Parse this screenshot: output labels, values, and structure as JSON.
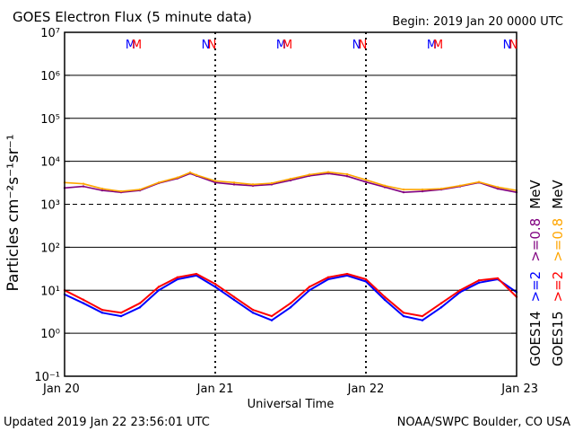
{
  "title": "GOES Electron Flux (5 minute data)",
  "begin_label": "Begin: 2019 Jan 20 0000 UTC",
  "updated_label": "Updated 2019 Jan 22 23:56:01 UTC",
  "credit_label": "NOAA/SWPC Boulder, CO USA",
  "chart_data": {
    "type": "line",
    "title": "GOES Electron Flux (5 minute data)",
    "xlabel": "Universal Time",
    "ylabel": "Particles cm⁻²s⁻¹sr⁻¹",
    "y_scale": "log",
    "ylim": [
      0.1,
      10000000
    ],
    "y_ticks": [
      {
        "value": 0.1,
        "label": "10⁻¹"
      },
      {
        "value": 1,
        "label": "10⁰"
      },
      {
        "value": 10,
        "label": "10¹"
      },
      {
        "value": 100,
        "label": "10²"
      },
      {
        "value": 1000,
        "label": "10³"
      },
      {
        "value": 10000,
        "label": "10⁴"
      },
      {
        "value": 100000,
        "label": "10⁵"
      },
      {
        "value": 1000000,
        "label": "10⁶"
      },
      {
        "value": 10000000,
        "label": "10⁷"
      }
    ],
    "xlim": [
      "2019-01-20 00:00",
      "2019-01-23 00:00"
    ],
    "x_ticks": [
      "Jan 20",
      "Jan 21",
      "Jan 22",
      "Jan 23"
    ],
    "day_markers": [
      {
        "label": "M",
        "time": "2019-01-20 10:30",
        "color": "#0000ff"
      },
      {
        "label": "M",
        "time": "2019-01-20 11:30",
        "color": "#ff0000"
      },
      {
        "label": "N",
        "time": "2019-01-20 22:30",
        "color": "#0000ff"
      },
      {
        "label": "N",
        "time": "2019-01-20 23:30",
        "color": "#ff0000"
      },
      {
        "label": "M",
        "time": "2019-01-21 10:30",
        "color": "#0000ff"
      },
      {
        "label": "M",
        "time": "2019-01-21 11:30",
        "color": "#ff0000"
      },
      {
        "label": "N",
        "time": "2019-01-21 22:30",
        "color": "#0000ff"
      },
      {
        "label": "N",
        "time": "2019-01-21 23:30",
        "color": "#ff0000"
      },
      {
        "label": "M",
        "time": "2019-01-22 10:30",
        "color": "#0000ff"
      },
      {
        "label": "M",
        "time": "2019-01-22 11:30",
        "color": "#ff0000"
      },
      {
        "label": "N",
        "time": "2019-01-22 22:30",
        "color": "#0000ff"
      },
      {
        "label": "N",
        "time": "2019-01-22 23:30",
        "color": "#ff0000"
      }
    ],
    "threshold": {
      "value": 1000,
      "style": "dashed"
    },
    "legend": [
      {
        "text": "GOES14",
        "color": "#000000"
      },
      {
        "text": ">=2",
        "color": "#0000ff"
      },
      {
        "text": ">=0.8",
        "color": "#800080"
      },
      {
        "text": "MeV",
        "color": "#000000"
      },
      {
        "text": "GOES15",
        "color": "#000000"
      },
      {
        "text": ">=2",
        "color": "#ff0000"
      },
      {
        "text": ">=0.8",
        "color": "#ffa500"
      },
      {
        "text": "MeV",
        "color": "#000000"
      }
    ],
    "series": [
      {
        "color": "#800080",
        "x": [
          "2019-01-20 00:00",
          "2019-01-20 03:00",
          "2019-01-20 06:00",
          "2019-01-20 09:00",
          "2019-01-20 12:00",
          "2019-01-20 15:00",
          "2019-01-20 18:00",
          "2019-01-20 20:00",
          "2019-01-20 21:00",
          "2019-01-21 00:00",
          "2019-01-21 03:00",
          "2019-01-21 06:00",
          "2019-01-21 09:00",
          "2019-01-21 12:00",
          "2019-01-21 15:00",
          "2019-01-21 18:00",
          "2019-01-21 21:00",
          "2019-01-22 00:00",
          "2019-01-22 03:00",
          "2019-01-22 06:00",
          "2019-01-22 09:00",
          "2019-01-22 12:00",
          "2019-01-22 15:00",
          "2019-01-22 18:00",
          "2019-01-22 21:00",
          "2019-01-23 00:00"
        ],
        "values": [
          2400,
          2600,
          2100,
          1900,
          2100,
          3100,
          4000,
          5200,
          4600,
          3200,
          2900,
          2700,
          2900,
          3600,
          4600,
          5200,
          4500,
          3300,
          2500,
          1900,
          2000,
          2200,
          2600,
          3200,
          2300,
          1900
        ]
      },
      {
        "color": "#ffa500",
        "x": [
          "2019-01-20 00:00",
          "2019-01-20 03:00",
          "2019-01-20 06:00",
          "2019-01-20 09:00",
          "2019-01-20 12:00",
          "2019-01-20 15:00",
          "2019-01-20 18:00",
          "2019-01-20 20:00",
          "2019-01-20 21:00",
          "2019-01-21 00:00",
          "2019-01-21 03:00",
          "2019-01-21 06:00",
          "2019-01-21 09:00",
          "2019-01-21 12:00",
          "2019-01-21 15:00",
          "2019-01-21 18:00",
          "2019-01-21 21:00",
          "2019-01-22 00:00",
          "2019-01-22 03:00",
          "2019-01-22 06:00",
          "2019-01-22 09:00",
          "2019-01-22 12:00",
          "2019-01-22 15:00",
          "2019-01-22 18:00",
          "2019-01-22 21:00",
          "2019-01-23 00:00"
        ],
        "values": [
          3200,
          3000,
          2300,
          2000,
          2200,
          3200,
          4200,
          5500,
          4800,
          3500,
          3200,
          2900,
          3100,
          3900,
          4900,
          5600,
          5000,
          3700,
          2700,
          2200,
          2200,
          2300,
          2700,
          3300,
          2500,
          2100
        ]
      },
      {
        "color": "#0000ff",
        "x": [
          "2019-01-20 00:00",
          "2019-01-20 03:00",
          "2019-01-20 06:00",
          "2019-01-20 09:00",
          "2019-01-20 12:00",
          "2019-01-20 15:00",
          "2019-01-20 18:00",
          "2019-01-20 21:00",
          "2019-01-21 00:00",
          "2019-01-21 03:00",
          "2019-01-21 06:00",
          "2019-01-21 09:00",
          "2019-01-21 12:00",
          "2019-01-21 15:00",
          "2019-01-21 18:00",
          "2019-01-21 21:00",
          "2019-01-22 00:00",
          "2019-01-22 03:00",
          "2019-01-22 06:00",
          "2019-01-22 09:00",
          "2019-01-22 12:00",
          "2019-01-22 15:00",
          "2019-01-22 18:00",
          "2019-01-22 21:00",
          "2019-01-23 00:00"
        ],
        "values": [
          8,
          5,
          3,
          2.5,
          4,
          10,
          18,
          22,
          12,
          6,
          3,
          2,
          4,
          10,
          18,
          22,
          16,
          6,
          2.5,
          2,
          4,
          9,
          15,
          18,
          9
        ]
      },
      {
        "color": "#ff0000",
        "x": [
          "2019-01-20 00:00",
          "2019-01-20 03:00",
          "2019-01-20 06:00",
          "2019-01-20 09:00",
          "2019-01-20 12:00",
          "2019-01-20 15:00",
          "2019-01-20 18:00",
          "2019-01-20 21:00",
          "2019-01-21 00:00",
          "2019-01-21 03:00",
          "2019-01-21 06:00",
          "2019-01-21 09:00",
          "2019-01-21 12:00",
          "2019-01-21 15:00",
          "2019-01-21 18:00",
          "2019-01-21 21:00",
          "2019-01-22 00:00",
          "2019-01-22 03:00",
          "2019-01-22 06:00",
          "2019-01-22 09:00",
          "2019-01-22 12:00",
          "2019-01-22 15:00",
          "2019-01-22 18:00",
          "2019-01-22 21:00",
          "2019-01-23 00:00"
        ],
        "values": [
          10,
          6,
          3.5,
          3,
          5,
          12,
          20,
          24,
          14,
          7,
          3.5,
          2.5,
          5,
          12,
          20,
          24,
          18,
          7,
          3,
          2.5,
          5,
          10,
          17,
          19,
          7
        ]
      }
    ],
    "grid": true,
    "legend_placement": "right, rotated vertical"
  }
}
